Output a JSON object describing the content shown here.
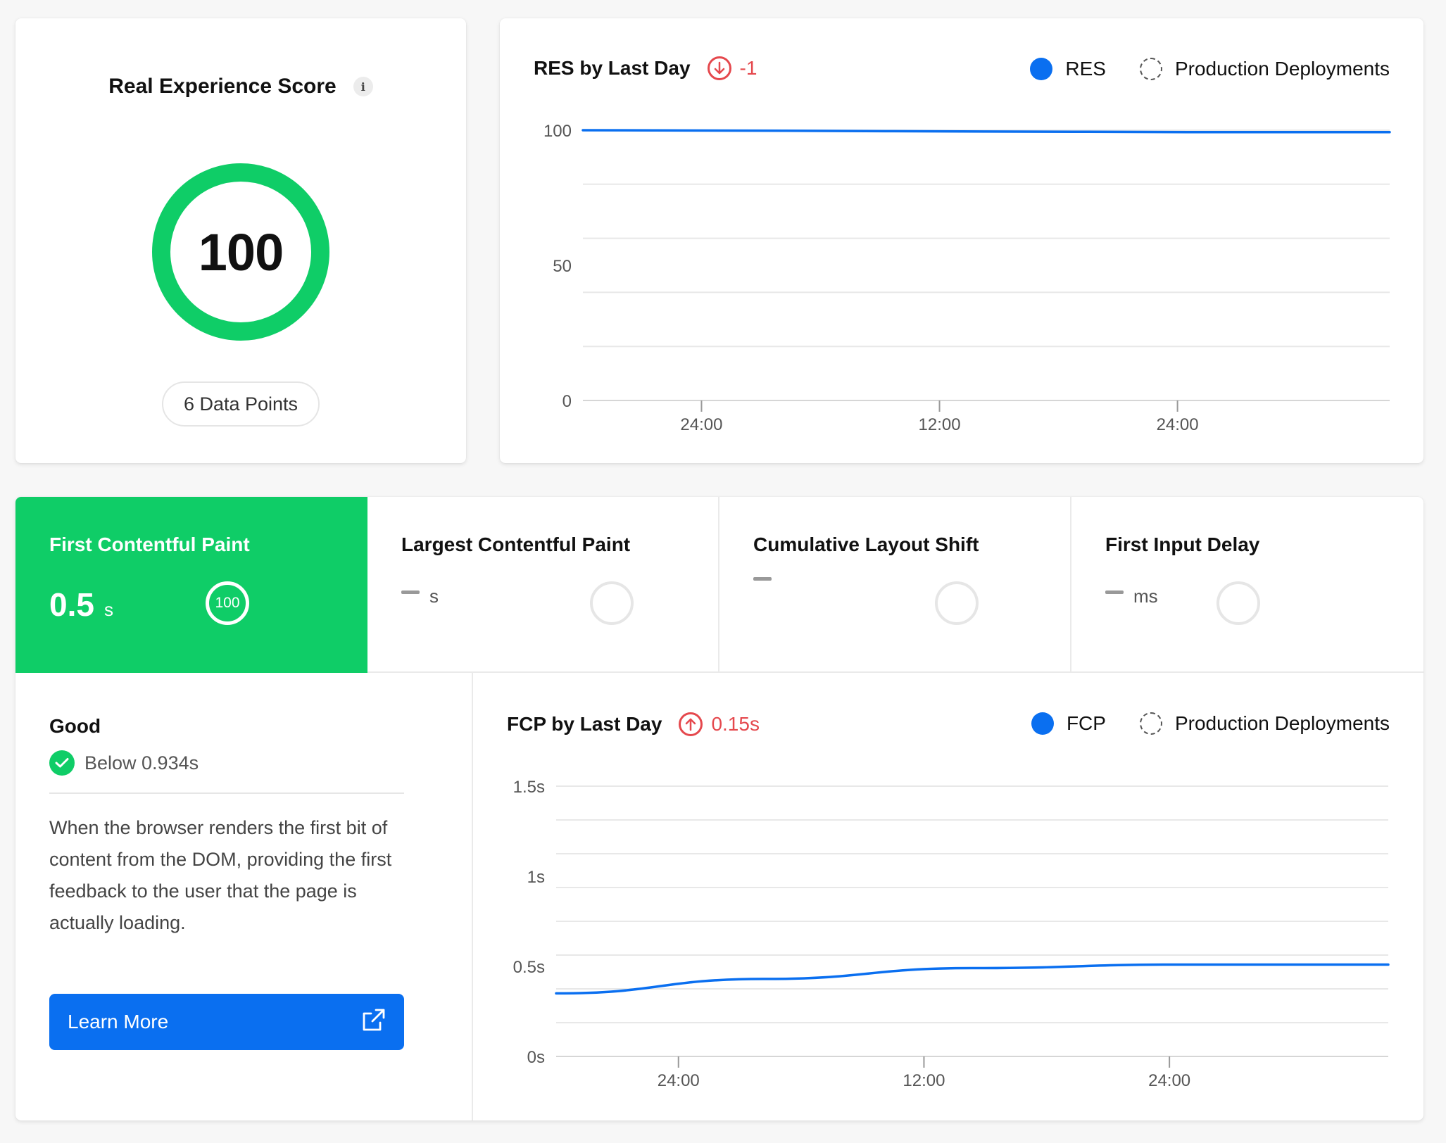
{
  "score_card": {
    "title": "Real Experience Score",
    "info_icon": "i",
    "score": "100",
    "data_points": "6 Data Points",
    "ring_color": "#0fcd67"
  },
  "res_chart": {
    "title": "RES by Last Day",
    "delta": "-1",
    "delta_direction": "down",
    "legend": [
      {
        "label": "RES",
        "style": "solid",
        "color": "#0a6ff0"
      },
      {
        "label": "Production Deployments",
        "style": "dashed"
      }
    ],
    "y_ticks": [
      "100",
      "50",
      "0"
    ],
    "x_ticks": [
      "24:00",
      "12:00",
      "24:00"
    ]
  },
  "vitals_tabs": [
    {
      "title": "First Contentful Paint",
      "value": "0.5",
      "unit": "s",
      "score": "100",
      "active": true
    },
    {
      "title": "Largest Contentful Paint",
      "value": "",
      "unit": "s",
      "active": false
    },
    {
      "title": "Cumulative Layout Shift",
      "value": "",
      "unit": "",
      "active": false
    },
    {
      "title": "First Input Delay",
      "value": "",
      "unit": "ms",
      "active": false
    }
  ],
  "detail": {
    "rating": "Good",
    "threshold": "Below 0.934s",
    "description": "When the browser renders the first bit of content from the DOM, providing the first feedback to the user that the page is actually loading.",
    "button_label": "Learn More"
  },
  "fcp_chart": {
    "title": "FCP by Last Day",
    "delta": "0.15s",
    "delta_direction": "up",
    "legend": [
      {
        "label": "FCP",
        "style": "solid",
        "color": "#0a6ff0"
      },
      {
        "label": "Production Deployments",
        "style": "dashed"
      }
    ],
    "y_ticks": [
      "1.5s",
      "1s",
      "0.5s",
      "0s"
    ],
    "x_ticks": [
      "24:00",
      "12:00",
      "24:00"
    ]
  },
  "colors": {
    "good": "#0fcd67",
    "accent": "#0a6ff0",
    "negative": "#e5484d"
  },
  "chart_data": [
    {
      "type": "line",
      "title": "RES by Last Day",
      "x": [
        0,
        0.25,
        0.5,
        0.75,
        1.0
      ],
      "x_tick_labels": [
        "24:00",
        "12:00",
        "24:00"
      ],
      "series": [
        {
          "name": "RES",
          "values": [
            100,
            99.8,
            99.5,
            99.3,
            99.3
          ]
        }
      ],
      "ylim": [
        0,
        100
      ],
      "y_ticks": [
        0,
        50,
        100
      ],
      "grid": true,
      "legend": "top-right"
    },
    {
      "type": "line",
      "title": "FCP by Last Day",
      "x": [
        0,
        0.25,
        0.5,
        0.75,
        1.0
      ],
      "x_tick_labels": [
        "24:00",
        "12:00",
        "24:00"
      ],
      "series": [
        {
          "name": "FCP",
          "values": [
            0.35,
            0.43,
            0.49,
            0.51,
            0.51
          ]
        }
      ],
      "ylim": [
        0,
        1.5
      ],
      "y_ticks": [
        0,
        0.5,
        1,
        1.5
      ],
      "grid": true,
      "legend": "top-right"
    }
  ]
}
